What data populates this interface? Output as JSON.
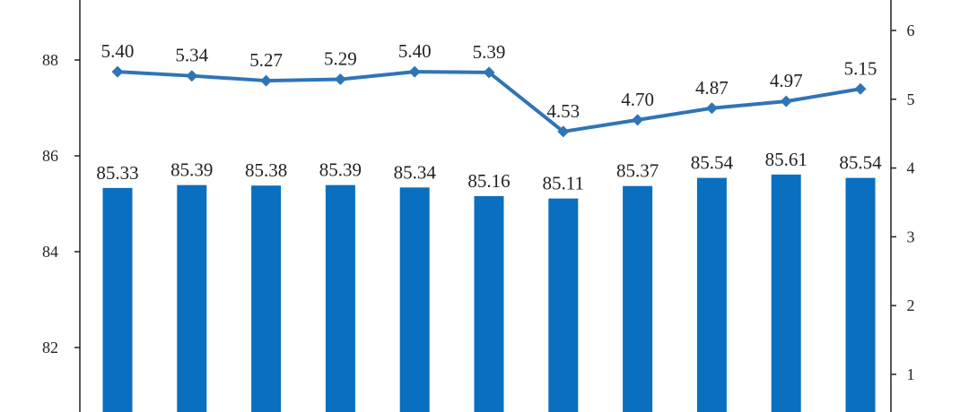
{
  "chart_data": {
    "type": "bar",
    "categories": [
      "",
      "",
      "",
      "",
      "",
      "",
      "",
      "",
      "",
      "",
      ""
    ],
    "series": [
      {
        "type": "bar",
        "axis": "left",
        "color": "#0a6fbf",
        "values": [
          85.33,
          85.39,
          85.38,
          85.39,
          85.34,
          85.16,
          85.11,
          85.37,
          85.54,
          85.61,
          85.54
        ],
        "labels": [
          "85.33",
          "85.39",
          "85.38",
          "85.39",
          "85.34",
          "85.16",
          "85.11",
          "85.37",
          "85.54",
          "85.61",
          "85.54"
        ]
      },
      {
        "type": "line",
        "axis": "right",
        "color": "#2e75b6",
        "marker": "diamond",
        "values": [
          5.4,
          5.34,
          5.27,
          5.29,
          5.4,
          5.39,
          4.53,
          4.7,
          4.87,
          4.97,
          5.15
        ],
        "labels": [
          "5.40",
          "5.34",
          "5.27",
          "5.29",
          "5.40",
          "5.39",
          "4.53",
          "4.70",
          "4.87",
          "4.97",
          "5.15"
        ]
      }
    ],
    "left_axis": {
      "ticks": [
        82,
        84,
        86,
        88
      ],
      "tick_labels": [
        "82",
        "84",
        "86",
        "88"
      ]
    },
    "right_axis": {
      "ticks": [
        1,
        2,
        3,
        4,
        5,
        6
      ],
      "tick_labels": [
        "1",
        "2",
        "3",
        "4",
        "5",
        "6"
      ]
    },
    "title": "",
    "xlabel": "",
    "ylabel": "",
    "grid": false,
    "legend": "none"
  }
}
